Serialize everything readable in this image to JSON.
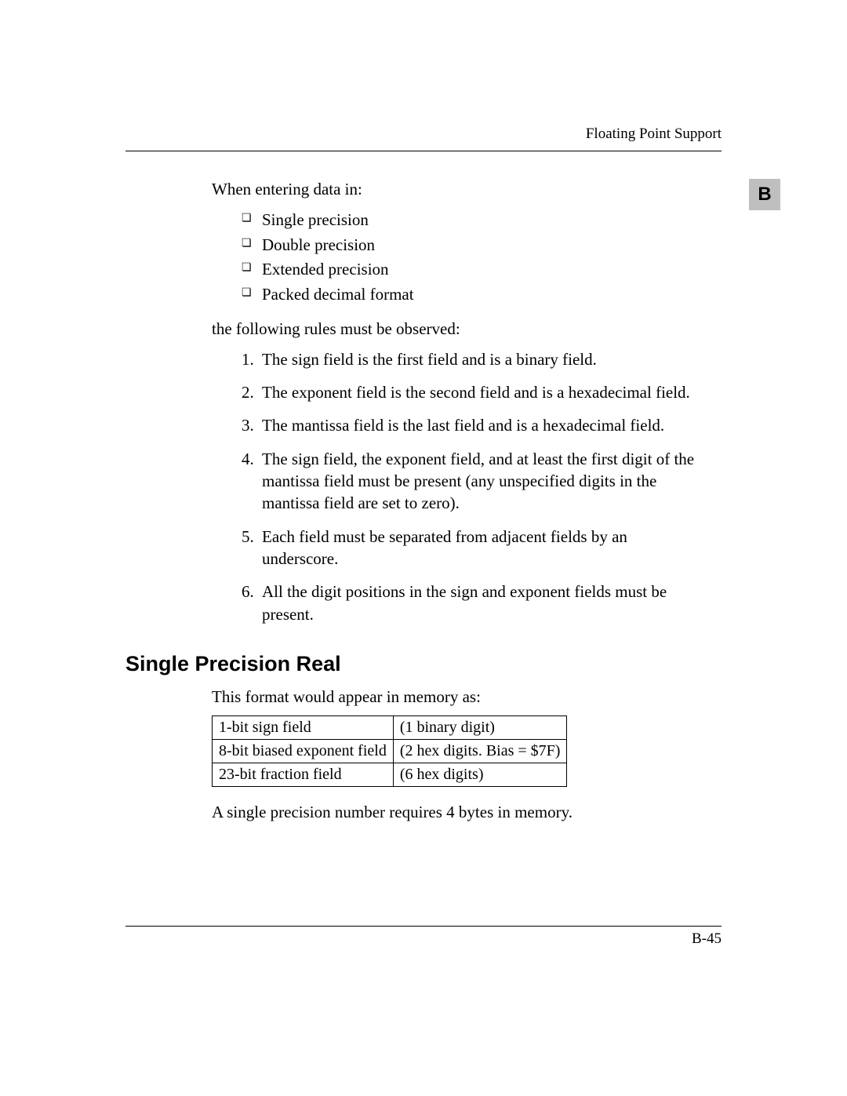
{
  "header": {
    "running_title": "Floating Point Support"
  },
  "tab": {
    "letter": "B"
  },
  "content": {
    "intro": "When entering data in:",
    "formats": [
      "Single precision",
      "Double precision",
      "Extended precision",
      "Packed decimal format"
    ],
    "rules_intro": "the following rules must be observed:",
    "rules": [
      "The sign field is the first field and is a binary field.",
      "The exponent field is the second field and is a hexadecimal field.",
      "The mantissa field is the last field and is a hexadecimal field.",
      "The sign field, the exponent field, and at least the first digit of the mantissa field must be present (any unspecified digits in the mantissa field are set to zero).",
      "Each field must be separated from adjacent fields by an underscore.",
      "All the digit positions in the sign and exponent fields must be present."
    ],
    "section_title": "Single Precision Real",
    "section_intro": "This format would appear in memory as:",
    "table": {
      "rows": [
        [
          "1-bit sign field",
          "(1 binary digit)"
        ],
        [
          "8-bit biased exponent field",
          "(2 hex digits. Bias = $7F)"
        ],
        [
          "23-bit fraction field",
          "(6 hex digits)"
        ]
      ]
    },
    "section_outro": "A single precision number requires 4 bytes in memory."
  },
  "footer": {
    "page_number": "B-45"
  }
}
